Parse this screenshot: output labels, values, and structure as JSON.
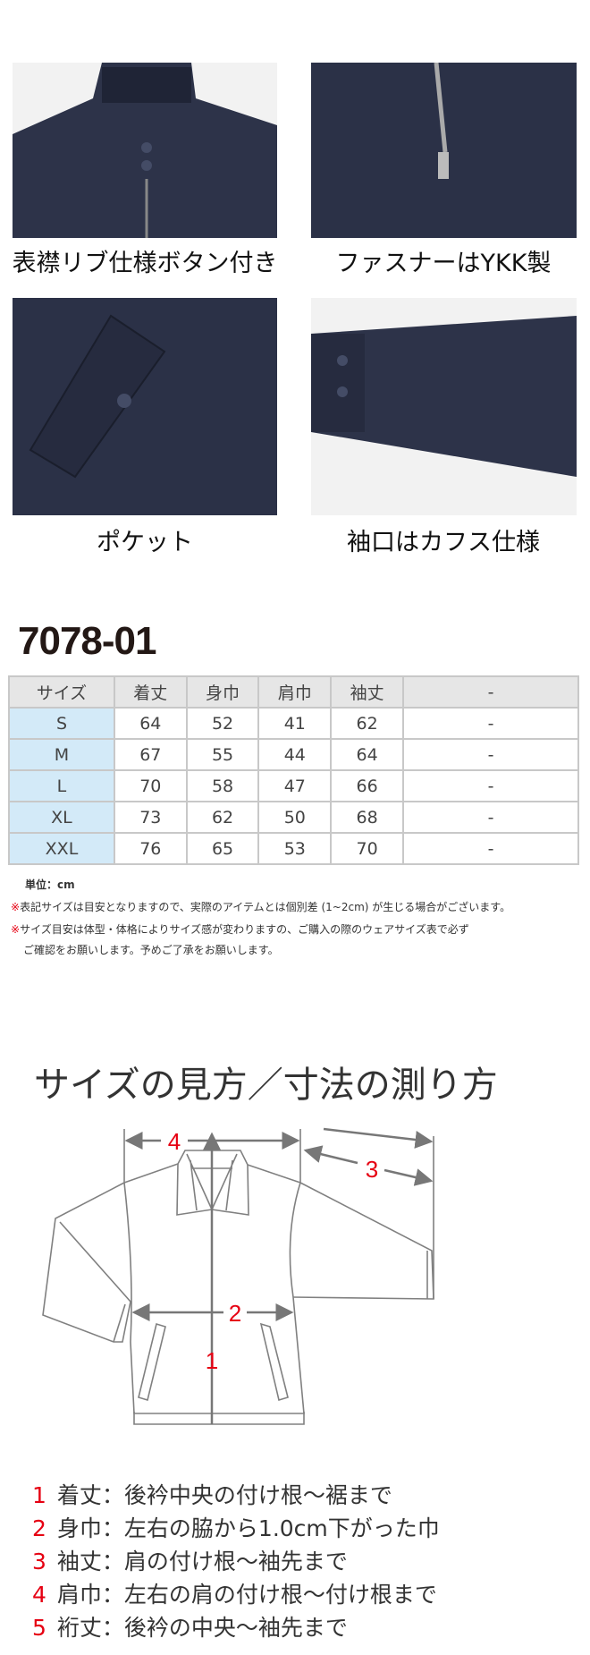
{
  "features": [
    {
      "caption": "表襟リブ仕様ボタン付き",
      "icon": "collar-photo"
    },
    {
      "caption": "ファスナーはYKK製",
      "icon": "zipper-photo"
    },
    {
      "caption": "ポケット",
      "icon": "pocket-photo"
    },
    {
      "caption": "袖口はカフス仕様",
      "icon": "cuff-photo"
    }
  ],
  "product_code": "7078-01",
  "table": {
    "headers": [
      "サイズ",
      "着丈",
      "身巾",
      "肩巾",
      "袖丈",
      "-"
    ],
    "rows": [
      [
        "S",
        "64",
        "52",
        "41",
        "62",
        "-"
      ],
      [
        "M",
        "67",
        "55",
        "44",
        "64",
        "-"
      ],
      [
        "L",
        "70",
        "58",
        "47",
        "66",
        "-"
      ],
      [
        "XL",
        "73",
        "62",
        "50",
        "68",
        "-"
      ],
      [
        "XXL",
        "76",
        "65",
        "53",
        "70",
        "-"
      ]
    ]
  },
  "notes": {
    "unit": "単位：cm",
    "mark": "※",
    "note1": "表記サイズは目安となりますので、実際のアイテムとは個別差 (1~2cm) が生じる場合がございます。",
    "note2a": "サイズ目安は体型・体格によりサイズ感が変わりますの、ご購入の際のウェアサイズ表で必ず",
    "note2b": "ご確認をお願いします。予めご了承をお願いします。"
  },
  "measure": {
    "heading": "サイズの見方／寸法の測り方",
    "diagram_labels": [
      "1",
      "2",
      "3",
      "4"
    ],
    "legend": [
      {
        "n": "1",
        "text": "着丈：後衿中央の付け根～裾まで"
      },
      {
        "n": "2",
        "text": "身巾：左右の脇から1.0cm下がった巾"
      },
      {
        "n": "3",
        "text": "袖丈：肩の付け根～袖先まで"
      },
      {
        "n": "4",
        "text": "肩巾：左右の肩の付け根～付け根まで"
      },
      {
        "n": "5",
        "text": "裄丈：後衿の中央～袖先まで"
      }
    ]
  },
  "colors": {
    "navy": "#2b3147",
    "accent": "#e60012",
    "line": "#777777",
    "size_col": "#d3eaf8"
  }
}
